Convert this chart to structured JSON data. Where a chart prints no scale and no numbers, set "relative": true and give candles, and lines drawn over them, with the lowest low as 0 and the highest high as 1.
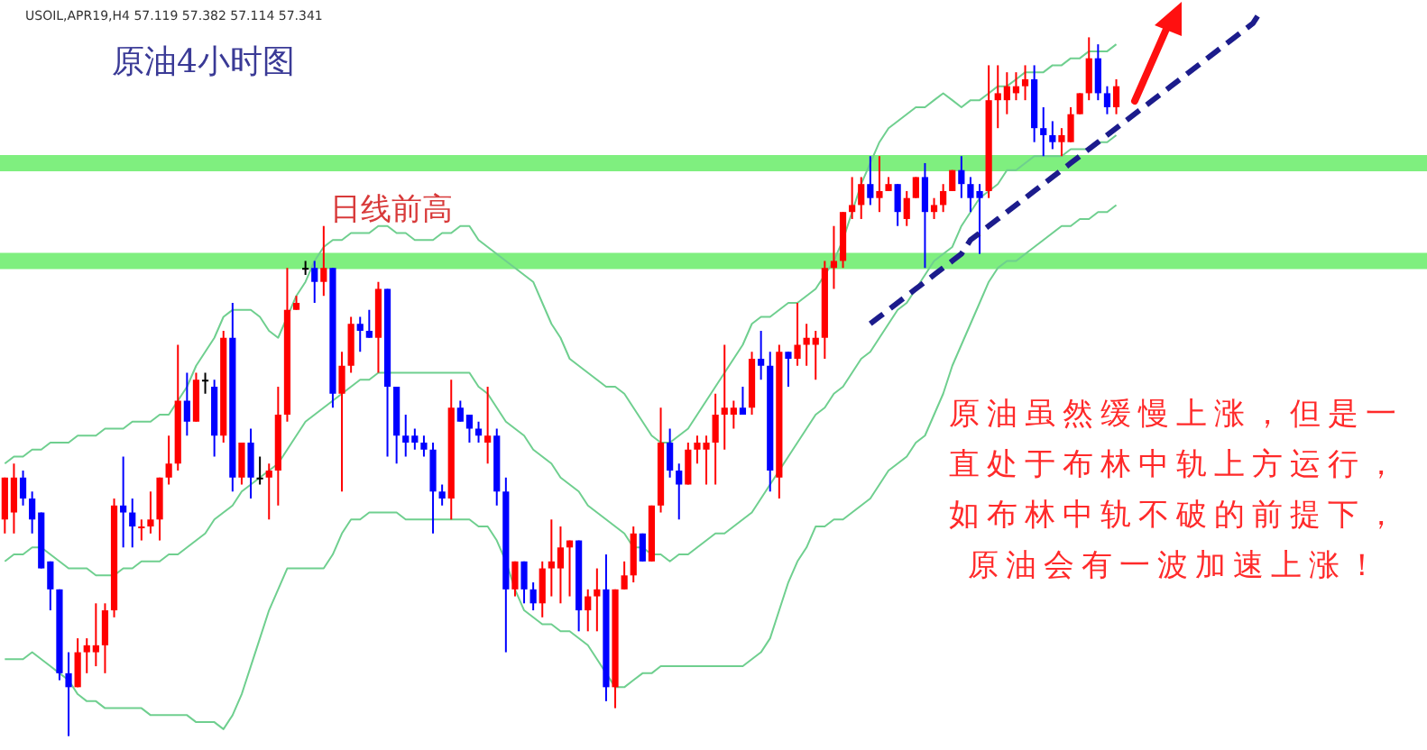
{
  "chart_data": {
    "type": "candlestick",
    "title": "原油4小时图",
    "subtitle": "USOIL,APR19,H4 57.119 57.382 57.114 57.341",
    "relative": true,
    "categories": [
      null,
      null,
      null,
      null,
      null,
      null,
      null,
      null,
      null,
      null,
      null,
      null,
      null,
      null,
      null,
      null,
      null,
      null,
      null,
      null,
      null,
      null,
      null,
      null,
      null,
      null,
      null,
      null,
      null,
      null,
      null,
      null,
      null,
      null,
      null,
      null,
      null,
      null,
      null,
      null,
      null,
      null,
      null,
      null,
      null,
      null,
      null,
      null,
      null,
      null,
      null,
      null,
      null,
      null,
      null,
      null,
      null,
      null,
      null,
      null,
      null,
      null,
      null,
      null,
      null,
      null,
      null,
      null,
      null,
      null,
      null,
      null,
      null,
      null,
      null,
      null,
      null,
      null,
      null,
      null,
      null,
      null,
      null,
      null,
      null,
      null,
      null,
      null,
      null,
      null,
      null,
      null,
      null,
      null,
      null,
      null,
      null,
      null,
      null,
      null,
      null,
      null,
      null,
      null,
      null,
      null,
      null,
      null,
      null,
      null,
      null,
      null,
      null,
      null,
      null,
      null,
      null,
      null,
      null,
      null,
      null,
      null,
      null,
      null,
      null,
      null,
      null,
      null,
      null,
      null,
      null,
      null,
      null,
      null,
      null,
      null,
      null,
      null,
      null
    ],
    "ohlc": [
      [
        0.31,
        0.37,
        0.29,
        0.37
      ],
      [
        0.32,
        0.39,
        0.29,
        0.37
      ],
      [
        0.37,
        0.38,
        0.33,
        0.34
      ],
      [
        0.34,
        0.35,
        0.29,
        0.31
      ],
      [
        0.32,
        0.32,
        0.24,
        0.24
      ],
      [
        0.25,
        0.25,
        0.18,
        0.21
      ],
      [
        0.21,
        0.21,
        0.08,
        0.09
      ],
      [
        0.09,
        0.12,
        0,
        0.07
      ],
      [
        0.07,
        0.14,
        0.07,
        0.12
      ],
      [
        0.12,
        0.14,
        0.09,
        0.13
      ],
      [
        0.12,
        0.19,
        0.1,
        0.13
      ],
      [
        0.13,
        0.19,
        0.09,
        0.18
      ],
      [
        0.18,
        0.34,
        0.17,
        0.33
      ],
      [
        0.33,
        0.4,
        0.27,
        0.32
      ],
      [
        0.32,
        0.34,
        0.27,
        0.3
      ],
      [
        0.3,
        0.31,
        0.28,
        0.3
      ],
      [
        0.3,
        0.35,
        0.29,
        0.31
      ],
      [
        0.31,
        0.37,
        0.28,
        0.37
      ],
      [
        0.37,
        0.43,
        0.36,
        0.39
      ],
      [
        0.39,
        0.56,
        0.38,
        0.48
      ],
      [
        0.48,
        0.52,
        0.43,
        0.45
      ],
      [
        0.45,
        0.52,
        0.45,
        0.51
      ],
      [
        0.51,
        0.52,
        0.49,
        0.51
      ],
      [
        0.5,
        0.51,
        0.4,
        0.43
      ],
      [
        0.43,
        0.58,
        0.42,
        0.57
      ],
      [
        0.57,
        0.62,
        0.35,
        0.37
      ],
      [
        0.37,
        0.42,
        0.36,
        0.42
      ],
      [
        0.42,
        0.44,
        0.34,
        0.37
      ],
      [
        0.37,
        0.4,
        0.36,
        0.37
      ],
      [
        0.37,
        0.39,
        0.31,
        0.38
      ],
      [
        0.38,
        0.5,
        0.33,
        0.46
      ],
      [
        0.46,
        0.67,
        0.45,
        0.61
      ],
      [
        0.61,
        0.63,
        0.61,
        0.62
      ],
      [
        0.67,
        0.68,
        0.66,
        0.67
      ],
      [
        0.67,
        0.68,
        0.62,
        0.65
      ],
      [
        0.65,
        0.73,
        0.63,
        0.67
      ],
      [
        0.67,
        0.67,
        0.47,
        0.49
      ],
      [
        0.49,
        0.55,
        0.35,
        0.53
      ],
      [
        0.53,
        0.6,
        0.52,
        0.59
      ],
      [
        0.59,
        0.6,
        0.55,
        0.58
      ],
      [
        0.58,
        0.61,
        0.57,
        0.57
      ],
      [
        0.57,
        0.65,
        0.52,
        0.64
      ],
      [
        0.64,
        0.64,
        0.4,
        0.5
      ],
      [
        0.5,
        0.5,
        0.39,
        0.43
      ],
      [
        0.43,
        0.46,
        0.4,
        0.42
      ],
      [
        0.43,
        0.44,
        0.41,
        0.42
      ],
      [
        0.42,
        0.43,
        0.4,
        0.41
      ],
      [
        0.41,
        0.42,
        0.29,
        0.35
      ],
      [
        0.35,
        0.36,
        0.33,
        0.34
      ],
      [
        0.34,
        0.51,
        0.31,
        0.47
      ],
      [
        0.47,
        0.48,
        0.45,
        0.45
      ],
      [
        0.46,
        0.46,
        0.42,
        0.44
      ],
      [
        0.44,
        0.45,
        0.42,
        0.43
      ],
      [
        0.42,
        0.5,
        0.39,
        0.43
      ],
      [
        0.43,
        0.44,
        0.33,
        0.35
      ],
      [
        0.35,
        0.37,
        0.12,
        0.21
      ],
      [
        0.21,
        0.25,
        0.2,
        0.25
      ],
      [
        0.25,
        0.25,
        0.19,
        0.21
      ],
      [
        0.21,
        0.22,
        0.18,
        0.19
      ],
      [
        0.19,
        0.25,
        0.17,
        0.24
      ],
      [
        0.24,
        0.31,
        0.2,
        0.25
      ],
      [
        0.24,
        0.3,
        0.19,
        0.27
      ],
      [
        0.27,
        0.28,
        0.2,
        0.28
      ],
      [
        0.28,
        0.28,
        0.15,
        0.18
      ],
      [
        0.18,
        0.21,
        0.15,
        0.2
      ],
      [
        0.2,
        0.24,
        0.15,
        0.21
      ],
      [
        0.21,
        0.26,
        0.05,
        0.07
      ],
      [
        0.07,
        0.21,
        0.04,
        0.21
      ],
      [
        0.21,
        0.25,
        0.21,
        0.23
      ],
      [
        0.23,
        0.3,
        0.22,
        0.29
      ],
      [
        0.29,
        0.29,
        0.25,
        0.25
      ],
      [
        0.25,
        0.33,
        0.25,
        0.33
      ],
      [
        0.33,
        0.47,
        0.32,
        0.42
      ],
      [
        0.42,
        0.44,
        0.37,
        0.38
      ],
      [
        0.38,
        0.39,
        0.31,
        0.36
      ],
      [
        0.36,
        0.42,
        0.36,
        0.41
      ],
      [
        0.41,
        0.43,
        0.39,
        0.42
      ],
      [
        0.41,
        0.43,
        0.36,
        0.42
      ],
      [
        0.42,
        0.49,
        0.36,
        0.46
      ],
      [
        0.46,
        0.56,
        0.41,
        0.47
      ],
      [
        0.46,
        0.48,
        0.44,
        0.47
      ],
      [
        0.47,
        0.5,
        0.46,
        0.46
      ],
      [
        0.47,
        0.55,
        0.46,
        0.54
      ],
      [
        0.54,
        0.58,
        0.51,
        0.53
      ],
      [
        0.53,
        0.55,
        0.35,
        0.38
      ],
      [
        0.37,
        0.56,
        0.34,
        0.55
      ],
      [
        0.55,
        0.55,
        0.5,
        0.54
      ],
      [
        0.54,
        0.62,
        0.53,
        0.56
      ],
      [
        0.56,
        0.59,
        0.53,
        0.57
      ],
      [
        0.56,
        0.58,
        0.51,
        0.57
      ],
      [
        0.57,
        0.68,
        0.54,
        0.67
      ],
      [
        0.67,
        0.73,
        0.64,
        0.68
      ],
      [
        0.68,
        0.75,
        0.67,
        0.75
      ],
      [
        0.75,
        0.8,
        0.74,
        0.76
      ],
      [
        0.76,
        0.8,
        0.74,
        0.79
      ],
      [
        0.79,
        0.83,
        0.76,
        0.77
      ],
      [
        0.77,
        0.83,
        0.75,
        0.78
      ],
      [
        0.78,
        0.8,
        0.78,
        0.79
      ],
      [
        0.79,
        0.79,
        0.73,
        0.75
      ],
      [
        0.74,
        0.78,
        0.73,
        0.77
      ],
      [
        0.77,
        0.8,
        0.77,
        0.8
      ],
      [
        0.8,
        0.82,
        0.67,
        0.75
      ],
      [
        0.75,
        0.77,
        0.74,
        0.76
      ],
      [
        0.76,
        0.79,
        0.75,
        0.78
      ],
      [
        0.78,
        0.81,
        0.78,
        0.81
      ],
      [
        0.81,
        0.83,
        0.77,
        0.79
      ],
      [
        0.79,
        0.8,
        0.75,
        0.77
      ],
      [
        0.78,
        0.79,
        0.69,
        0.77
      ],
      [
        0.78,
        0.96,
        0.77,
        0.91
      ],
      [
        0.91,
        0.96,
        0.87,
        0.92
      ],
      [
        0.91,
        0.95,
        0.89,
        0.93
      ],
      [
        0.92,
        0.95,
        0.91,
        0.93
      ],
      [
        0.93,
        0.96,
        0.91,
        0.94
      ],
      [
        0.94,
        0.96,
        0.85,
        0.87
      ],
      [
        0.87,
        0.9,
        0.83,
        0.86
      ],
      [
        0.86,
        0.88,
        0.84,
        0.85
      ],
      [
        0.85,
        0.87,
        0.83,
        0.86
      ],
      [
        0.85,
        0.9,
        0.85,
        0.89
      ],
      [
        0.89,
        0.92,
        0.89,
        0.92
      ],
      [
        0.92,
        1,
        0.91,
        0.97
      ],
      [
        0.97,
        0.99,
        0.91,
        0.92
      ],
      [
        0.92,
        0.93,
        0.89,
        0.9
      ],
      [
        0.9,
        0.94,
        0.89,
        0.93
      ],
      null,
      null,
      null,
      null,
      null,
      null,
      null,
      null,
      null,
      null,
      null,
      null,
      null,
      null,
      null,
      null
    ],
    "colors": [
      "#ff0000",
      "#ff0000",
      "#0000ff",
      "#0000ff",
      "#0000ff",
      "#0000ff",
      "#0000ff",
      "#0000ff",
      "#ff0000",
      "#ff0000",
      "#ff0000",
      "#ff0000",
      "#ff0000",
      "#0000ff",
      "#0000ff",
      "#ff0000",
      "#ff0000",
      "#ff0000",
      "#ff0000",
      "#ff0000",
      "#0000ff",
      "#ff0000",
      "#000000",
      "#0000ff",
      "#ff0000",
      "#0000ff",
      "#ff0000",
      "#0000ff",
      "#000000",
      "#ff0000",
      "#ff0000",
      "#ff0000",
      "#ff0000",
      "#000000",
      "#0000ff",
      "#ff0000",
      "#0000ff",
      "#ff0000",
      "#ff0000",
      "#0000ff",
      "#0000ff",
      "#ff0000",
      "#0000ff",
      "#0000ff",
      "#0000ff",
      "#0000ff",
      "#0000ff",
      "#0000ff",
      "#0000ff",
      "#ff0000",
      "#0000ff",
      "#0000ff",
      "#0000ff",
      "#ff0000",
      "#0000ff",
      "#0000ff",
      "#ff0000",
      "#0000ff",
      "#0000ff",
      "#ff0000",
      "#ff0000",
      "#ff0000",
      "#ff0000",
      "#0000ff",
      "#ff0000",
      "#ff0000",
      "#0000ff",
      "#ff0000",
      "#ff0000",
      "#ff0000",
      "#0000ff",
      "#ff0000",
      "#ff0000",
      "#0000ff",
      "#0000ff",
      "#ff0000",
      "#ff0000",
      "#ff0000",
      "#ff0000",
      "#ff0000",
      "#ff0000",
      "#0000ff",
      "#ff0000",
      "#0000ff",
      "#0000ff",
      "#ff0000",
      "#0000ff",
      "#ff0000",
      "#ff0000",
      "#ff0000",
      "#ff0000",
      "#ff0000",
      "#ff0000",
      "#ff0000",
      "#ff0000",
      "#0000ff",
      "#ff0000",
      "#ff0000",
      "#0000ff",
      "#ff0000",
      "#ff0000",
      "#0000ff",
      "#ff0000",
      "#ff0000",
      "#ff0000",
      "#0000ff",
      "#0000ff",
      "#0000ff",
      "#ff0000",
      "#ff0000",
      "#ff0000",
      "#ff0000",
      "#ff0000",
      "#0000ff",
      "#0000ff",
      "#0000ff",
      "#ff0000",
      "#ff0000",
      "#ff0000",
      "#ff0000",
      "#0000ff",
      "#0000ff",
      "#ff0000",
      null,
      null,
      null,
      null,
      null,
      null,
      null,
      null,
      null,
      null,
      null,
      null,
      null,
      null,
      null,
      null
    ],
    "series": [
      {
        "type": "line",
        "color": "#6fcf8f",
        "values": [
          0.39,
          0.4,
          0.4,
          0.41,
          0.41,
          0.42,
          0.42,
          0.42,
          0.43,
          0.43,
          0.43,
          0.44,
          0.44,
          0.44,
          0.45,
          0.45,
          0.45,
          0.46,
          0.46,
          0.48,
          0.5,
          0.53,
          0.55,
          0.57,
          0.6,
          0.61,
          0.61,
          0.61,
          0.6,
          0.58,
          0.57,
          0.6,
          0.63,
          0.65,
          0.68,
          0.7,
          0.71,
          0.71,
          0.72,
          0.72,
          0.72,
          0.73,
          0.73,
          0.72,
          0.72,
          0.71,
          0.71,
          0.71,
          0.72,
          0.72,
          0.73,
          0.73,
          0.71,
          0.7,
          0.69,
          0.68,
          0.67,
          0.66,
          0.65,
          0.62,
          0.59,
          0.57,
          0.54,
          0.53,
          0.52,
          0.51,
          0.5,
          0.5,
          0.49,
          0.47,
          0.45,
          0.43,
          0.42,
          0.42,
          0.43,
          0.44,
          0.46,
          0.48,
          0.5,
          0.52,
          0.54,
          0.56,
          0.59,
          0.6,
          0.6,
          0.61,
          0.62,
          0.62,
          0.63,
          0.64,
          0.66,
          0.68,
          0.71,
          0.75,
          0.79,
          0.82,
          0.85,
          0.87,
          0.88,
          0.89,
          0.9,
          0.9,
          0.91,
          0.92,
          0.91,
          0.9,
          0.91,
          0.91,
          0.92,
          0.93,
          0.93,
          0.94,
          0.95,
          0.95,
          0.95,
          0.96,
          0.96,
          0.97,
          0.97,
          0.98,
          0.98,
          0.98,
          0.99,
          null,
          null,
          null,
          null,
          null,
          null,
          null,
          null,
          null,
          null,
          null,
          null,
          null,
          null,
          null,
          null
        ]
      },
      {
        "type": "line",
        "color": "#6fcf8f",
        "values": [
          0.25,
          0.26,
          0.26,
          0.27,
          0.27,
          0.26,
          0.25,
          0.24,
          0.24,
          0.24,
          0.23,
          0.23,
          0.23,
          0.24,
          0.24,
          0.25,
          0.25,
          0.25,
          0.26,
          0.26,
          0.27,
          0.28,
          0.29,
          0.31,
          0.32,
          0.33,
          0.35,
          0.36,
          0.37,
          0.38,
          0.39,
          0.41,
          0.43,
          0.45,
          0.46,
          0.47,
          0.48,
          0.49,
          0.5,
          0.51,
          0.51,
          0.52,
          0.52,
          0.52,
          0.52,
          0.52,
          0.52,
          0.52,
          0.52,
          0.52,
          0.52,
          0.52,
          0.5,
          0.49,
          0.47,
          0.45,
          0.44,
          0.43,
          0.41,
          0.4,
          0.39,
          0.37,
          0.36,
          0.35,
          0.33,
          0.32,
          0.31,
          0.3,
          0.29,
          0.27,
          0.27,
          0.26,
          0.26,
          0.25,
          0.26,
          0.26,
          0.27,
          0.28,
          0.29,
          0.29,
          0.3,
          0.31,
          0.32,
          0.34,
          0.36,
          0.38,
          0.4,
          0.42,
          0.44,
          0.46,
          0.47,
          0.49,
          0.5,
          0.52,
          0.54,
          0.55,
          0.57,
          0.59,
          0.61,
          0.62,
          0.64,
          0.66,
          0.68,
          0.69,
          0.7,
          0.73,
          0.75,
          0.77,
          0.78,
          0.79,
          0.81,
          0.81,
          0.82,
          0.83,
          0.83,
          0.83,
          0.83,
          0.84,
          0.84,
          0.84,
          0.85,
          0.85,
          0.86,
          null,
          null,
          null,
          null,
          null,
          null,
          null,
          null,
          null,
          null,
          null,
          null,
          null,
          null,
          null,
          null
        ]
      },
      {
        "type": "line",
        "color": "#6fcf8f",
        "values": [
          0.11,
          0.11,
          0.11,
          0.12,
          0.11,
          0.1,
          0.09,
          0.08,
          0.06,
          0.05,
          0.05,
          0.04,
          0.04,
          0.04,
          0.04,
          0.04,
          0.03,
          0.03,
          0.03,
          0.03,
          0.03,
          0.02,
          0.02,
          0.02,
          0.01,
          0.03,
          0.06,
          0.1,
          0.14,
          0.18,
          0.21,
          0.24,
          0.24,
          0.24,
          0.24,
          0.24,
          0.26,
          0.29,
          0.31,
          0.31,
          0.32,
          0.32,
          0.32,
          0.32,
          0.31,
          0.31,
          0.31,
          0.31,
          0.31,
          0.31,
          0.31,
          0.31,
          0.3,
          0.3,
          0.28,
          0.25,
          0.21,
          0.18,
          0.17,
          0.16,
          0.16,
          0.15,
          0.15,
          0.14,
          0.13,
          0.11,
          0.09,
          0.07,
          0.07,
          0.08,
          0.09,
          0.09,
          0.1,
          0.1,
          0.1,
          0.1,
          0.1,
          0.1,
          0.1,
          0.1,
          0.1,
          0.1,
          0.11,
          0.12,
          0.14,
          0.18,
          0.22,
          0.25,
          0.27,
          0.3,
          0.3,
          0.31,
          0.31,
          0.32,
          0.33,
          0.34,
          0.36,
          0.38,
          0.39,
          0.4,
          0.42,
          0.43,
          0.46,
          0.49,
          0.53,
          0.56,
          0.59,
          0.62,
          0.65,
          0.67,
          0.68,
          0.68,
          0.69,
          0.7,
          0.71,
          0.72,
          0.73,
          0.73,
          0.74,
          0.74,
          0.75,
          0.75,
          0.76,
          null,
          null,
          null,
          null,
          null,
          null,
          null,
          null,
          null,
          null,
          null,
          null,
          null,
          null,
          null,
          null
        ]
      },
      {
        "type": "line",
        "color": "#1c1c8c",
        "line_style": "dashed",
        "values": [
          null,
          null,
          null,
          null,
          null,
          null,
          null,
          null,
          null,
          null,
          null,
          null,
          null,
          null,
          null,
          null,
          null,
          null,
          null,
          null,
          null,
          null,
          null,
          null,
          null,
          null,
          null,
          null,
          null,
          null,
          null,
          null,
          null,
          null,
          null,
          null,
          null,
          null,
          null,
          null,
          null,
          null,
          null,
          null,
          null,
          null,
          null,
          null,
          null,
          null,
          null,
          null,
          null,
          null,
          null,
          null,
          null,
          null,
          null,
          null,
          null,
          null,
          null,
          null,
          null,
          null,
          null,
          null,
          null,
          null,
          null,
          null,
          null,
          null,
          null,
          null,
          null,
          null,
          null,
          null,
          null,
          null,
          null,
          null,
          null,
          null,
          null,
          null,
          null,
          null,
          null,
          null,
          null,
          null,
          null,
          0.59,
          0.6,
          0.61,
          0.62,
          0.63,
          0.64,
          0.65,
          0.66,
          0.67,
          0.68,
          0.69,
          0.71,
          0.72,
          0.73,
          0.74,
          0.75,
          0.76,
          0.77,
          0.78,
          0.79,
          0.8,
          0.81,
          0.82,
          0.83,
          0.84,
          0.85,
          0.86,
          0.87,
          0.88,
          0.89,
          0.9,
          0.91,
          0.92,
          0.93,
          0.94,
          0.95,
          0.96,
          0.97,
          0.98,
          0.99,
          1,
          1.01,
          1.02,
          1.04
        ]
      }
    ],
    "ref_lines": [
      {
        "axis": "y",
        "value": 0.82,
        "color": "#7fef7f"
      },
      {
        "axis": "y",
        "value": 0.68,
        "label": "日线前高",
        "color": "#7fef7f"
      }
    ],
    "annotations": [
      "原油虽然缓慢上涨，但是一直处于布林中轨上方运行，如布林中轨不破的前提下，原油会有一波加速上涨！"
    ]
  }
}
